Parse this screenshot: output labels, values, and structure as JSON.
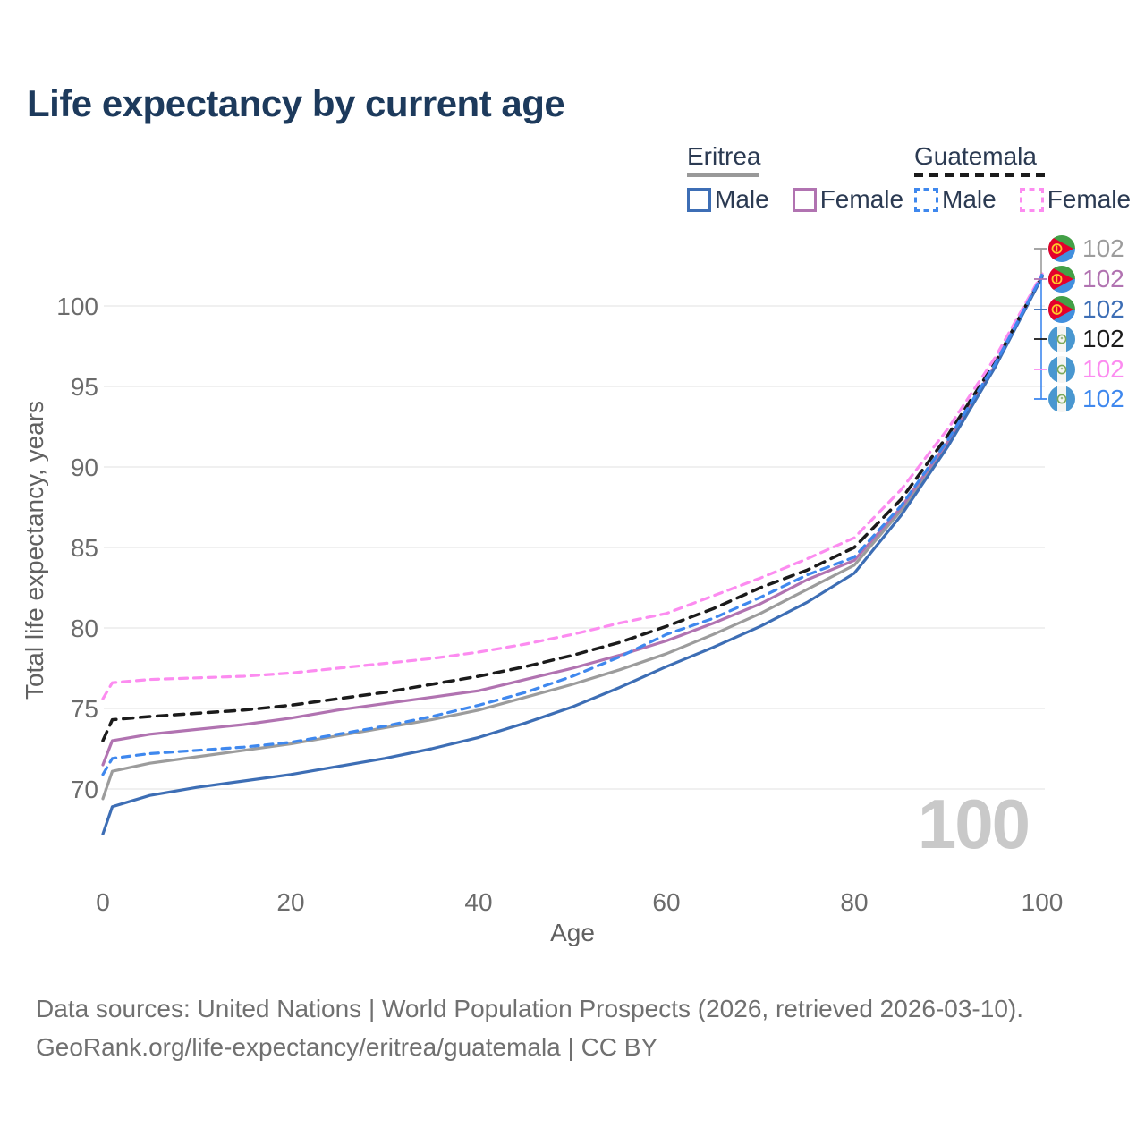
{
  "title": "Life expectancy by current age",
  "legend": {
    "groups": [
      {
        "label": "Eritrea",
        "line_style": "solid",
        "underline_color": "#999999",
        "items": [
          {
            "label": "Male",
            "color": "#3d6eb5"
          },
          {
            "label": "Female",
            "color": "#b173b1"
          }
        ]
      },
      {
        "label": "Guatemala",
        "line_style": "dashed",
        "underline_color": "#1b1b1b",
        "items": [
          {
            "label": "Male",
            "color": "#3f88ee"
          },
          {
            "label": "Female",
            "color": "#fc8cf0"
          }
        ]
      }
    ]
  },
  "chart_data": {
    "type": "line",
    "title": "Life expectancy by current age",
    "xlabel": "Age",
    "ylabel": "Total life expectancy, years",
    "x_ticks": [
      0,
      20,
      40,
      60,
      80,
      100
    ],
    "y_ticks": [
      70,
      75,
      80,
      85,
      90,
      95,
      100
    ],
    "xlim": [
      0,
      100
    ],
    "ylim": [
      66,
      103
    ],
    "grid": "horizontal-only",
    "legend_position": "top-right",
    "watermark": "100",
    "x": [
      0,
      1,
      5,
      10,
      15,
      20,
      25,
      30,
      35,
      40,
      45,
      50,
      55,
      60,
      65,
      70,
      75,
      80,
      85,
      90,
      95,
      100
    ],
    "series": [
      {
        "name": "Eritrea",
        "sex": "all",
        "style": "solid",
        "color": "#9c9c9c",
        "values": [
          69.4,
          71.1,
          71.6,
          72.0,
          72.4,
          72.8,
          73.3,
          73.8,
          74.3,
          74.9,
          75.7,
          76.5,
          77.4,
          78.4,
          79.6,
          80.9,
          82.4,
          83.9,
          87.3,
          91.5,
          96.3,
          101.8
        ],
        "end_value": 102
      },
      {
        "name": "Eritrea",
        "sex": "female",
        "style": "solid",
        "color": "#b173b1",
        "values": [
          71.5,
          73.0,
          73.4,
          73.7,
          74.0,
          74.4,
          74.9,
          75.3,
          75.7,
          76.1,
          76.8,
          77.5,
          78.3,
          79.2,
          80.3,
          81.5,
          83.0,
          84.2,
          87.5,
          91.6,
          96.3,
          101.9
        ],
        "end_value": 102
      },
      {
        "name": "Eritrea",
        "sex": "male",
        "style": "solid",
        "color": "#3d6eb5",
        "values": [
          67.2,
          68.9,
          69.6,
          70.1,
          70.5,
          70.9,
          71.4,
          71.9,
          72.5,
          73.2,
          74.1,
          75.1,
          76.3,
          77.6,
          78.8,
          80.1,
          81.6,
          83.4,
          87.0,
          91.3,
          96.2,
          101.8
        ],
        "end_value": 102
      },
      {
        "name": "Guatemala",
        "sex": "all",
        "style": "dashed",
        "color": "#1b1b1b",
        "values": [
          73.0,
          74.3,
          74.5,
          74.7,
          74.9,
          75.2,
          75.6,
          76.0,
          76.5,
          77.0,
          77.6,
          78.3,
          79.1,
          80.1,
          81.2,
          82.5,
          83.6,
          85.0,
          88.0,
          92.0,
          96.5,
          101.9
        ],
        "end_value": 102
      },
      {
        "name": "Guatemala",
        "sex": "female",
        "style": "dashed",
        "color": "#fc8cf0",
        "values": [
          75.6,
          76.6,
          76.8,
          76.9,
          77.0,
          77.2,
          77.5,
          77.8,
          78.1,
          78.5,
          79.0,
          79.6,
          80.3,
          80.9,
          82.0,
          83.1,
          84.3,
          85.6,
          88.6,
          92.4,
          96.8,
          102.0
        ],
        "end_value": 102
      },
      {
        "name": "Guatemala",
        "sex": "male",
        "style": "dashed",
        "color": "#3f88ee",
        "values": [
          70.9,
          71.9,
          72.2,
          72.4,
          72.6,
          72.9,
          73.4,
          73.9,
          74.5,
          75.2,
          76.0,
          77.0,
          78.2,
          79.6,
          80.6,
          81.9,
          83.3,
          84.4,
          87.6,
          91.7,
          96.4,
          101.9
        ],
        "end_value": 102
      }
    ]
  },
  "end_labels": [
    {
      "value": "102",
      "flag": "eritrea",
      "color": "#9c9c9c"
    },
    {
      "value": "102",
      "flag": "eritrea",
      "color": "#b173b1"
    },
    {
      "value": "102",
      "flag": "eritrea",
      "color": "#3d6eb5"
    },
    {
      "value": "102",
      "flag": "guatemala",
      "color": "#1b1b1b"
    },
    {
      "value": "102",
      "flag": "guatemala",
      "color": "#fc8cf0"
    },
    {
      "value": "102",
      "flag": "guatemala",
      "color": "#3f88ee"
    }
  ],
  "footer": {
    "line1": "Data sources: United Nations | World Population Prospects (2026, retrieved 2026-03-10).",
    "line2": "GeoRank.org/life-expectancy/eritrea/guatemala | CC BY"
  }
}
